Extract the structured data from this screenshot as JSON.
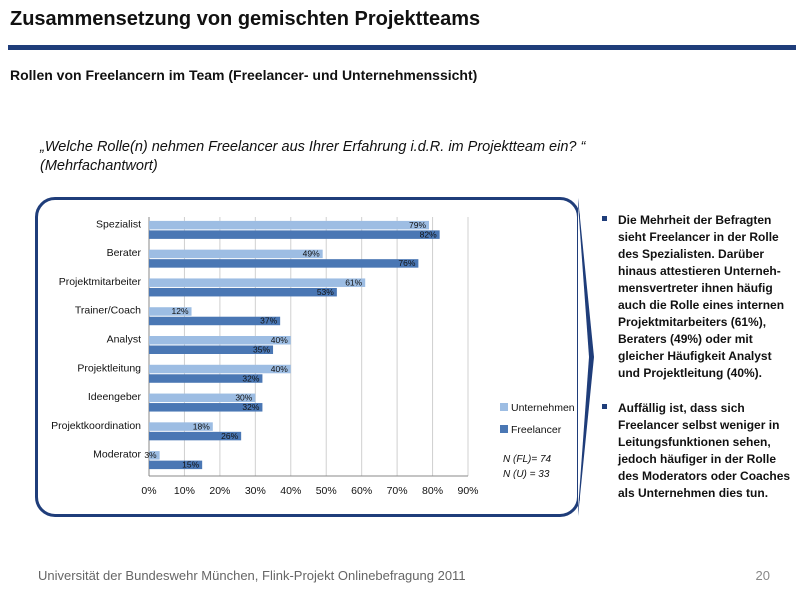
{
  "header": {
    "title": "Zusammensetzung von gemischten Projektteams",
    "subtitle": "Rollen von Freelancern im Team (Freelancer- und Unternehmenssicht)"
  },
  "question": {
    "line1": "„Welche Rolle(n) nehmen Freelancer aus Ihrer Erfahrung i.d.R. im Projektteam ein? “",
    "line2": "(Mehrfachantwort)"
  },
  "chart_data": {
    "type": "bar",
    "orientation": "horizontal",
    "categories": [
      "Spezialist",
      "Berater",
      "Projektmitarbeiter",
      "Trainer/Coach",
      "Analyst",
      "Projektleitung",
      "Ideengeber",
      "Projektkoordination",
      "Moderator"
    ],
    "series": [
      {
        "name": "Unternehmen",
        "color": "#9dbde3",
        "values": [
          79,
          49,
          61,
          12,
          40,
          40,
          30,
          18,
          3
        ],
        "labels": [
          "79%",
          "49%",
          "61%",
          "12%",
          "40%",
          "40%",
          "30%",
          "18%",
          "3%"
        ]
      },
      {
        "name": "Freelancer",
        "color": "#4a77b4",
        "values": [
          82,
          76,
          53,
          37,
          35,
          32,
          32,
          26,
          15
        ],
        "labels": [
          "82%",
          "76%",
          "53%",
          "37%",
          "35%",
          "32%",
          "32%",
          "26%",
          "15%"
        ]
      }
    ],
    "xlim": [
      0,
      90
    ],
    "xticks": [
      0,
      10,
      20,
      30,
      40,
      50,
      60,
      70,
      80,
      90
    ],
    "xtick_labels": [
      "0%",
      "10%",
      "20%",
      "30%",
      "40%",
      "50%",
      "60%",
      "70%",
      "80%",
      "90%"
    ],
    "grid": true,
    "legend_position": "right",
    "notes": [
      "N (FL)= 74",
      "N (U) = 33"
    ]
  },
  "bullets": [
    "Die Mehrheit der Befragten sieht Freelancer in der Rolle des Spezialisten. Darüber hinaus attestieren Unterneh-mensvertreter ihnen häufig auch die Rolle eines internen Projektmitarbeiters (61%), Beraters (49%) oder mit gleicher Häufigkeit Analyst und Projektleitung (40%).",
    "Auffällig ist, dass sich Freelancer selbst weniger in Leitungsfunktionen sehen, jedoch häufiger in der Rolle des Moderators oder Coaches als Unternehmen dies tun."
  ],
  "footer": {
    "source": "Universität der Bundeswehr München, Flink-Projekt Onlinebefragung  2011",
    "page": "20"
  },
  "colors": {
    "accent": "#1f3d7a"
  }
}
